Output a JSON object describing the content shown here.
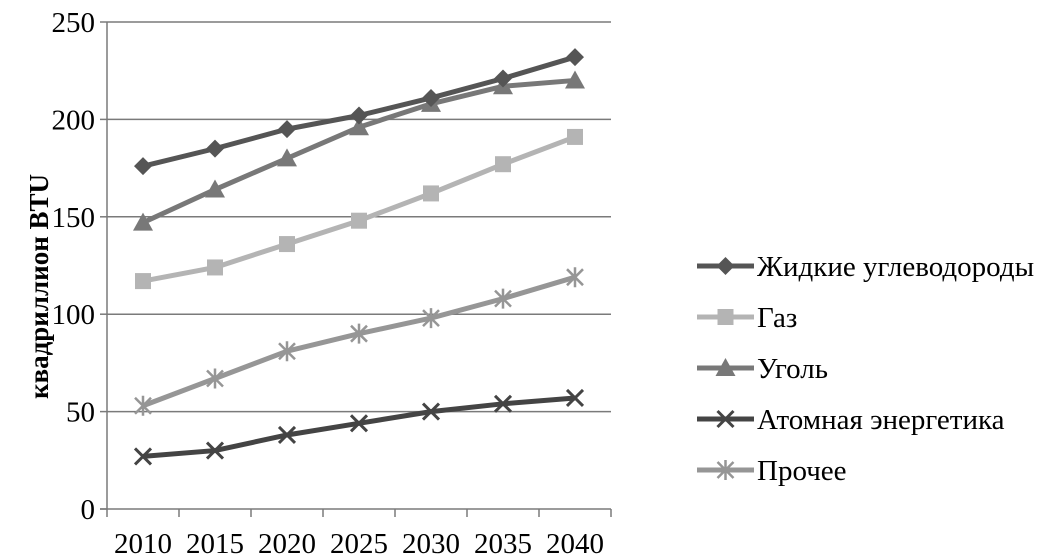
{
  "chart_data": {
    "type": "line",
    "title": "",
    "xlabel": "",
    "ylabel": "квадриллион BTU",
    "x": [
      "2010",
      "2015",
      "2020",
      "2025",
      "2030",
      "2035",
      "2040"
    ],
    "ylim": [
      0,
      250
    ],
    "yticks": [
      "0",
      "50",
      "100",
      "150",
      "200",
      "250"
    ],
    "grid": "horizontal",
    "legend_position": "right",
    "series": [
      {
        "name": "Жидкие углеводороды",
        "marker": "diamond",
        "color": "#555555",
        "values": [
          176,
          185,
          195,
          202,
          211,
          221,
          232
        ]
      },
      {
        "name": "Газ",
        "marker": "square",
        "color": "#b4b4b4",
        "values": [
          117,
          124,
          136,
          148,
          162,
          177,
          191
        ]
      },
      {
        "name": "Уголь",
        "marker": "triangle",
        "color": "#787878",
        "values": [
          147,
          164,
          180,
          196,
          208,
          217,
          220
        ]
      },
      {
        "name": "Атомная энергетика",
        "marker": "x",
        "color": "#444444",
        "values": [
          27,
          30,
          38,
          44,
          50,
          54,
          57
        ]
      },
      {
        "name": "Прочее",
        "marker": "star",
        "color": "#969696",
        "values": [
          53,
          67,
          81,
          90,
          98,
          108,
          119
        ]
      }
    ]
  }
}
